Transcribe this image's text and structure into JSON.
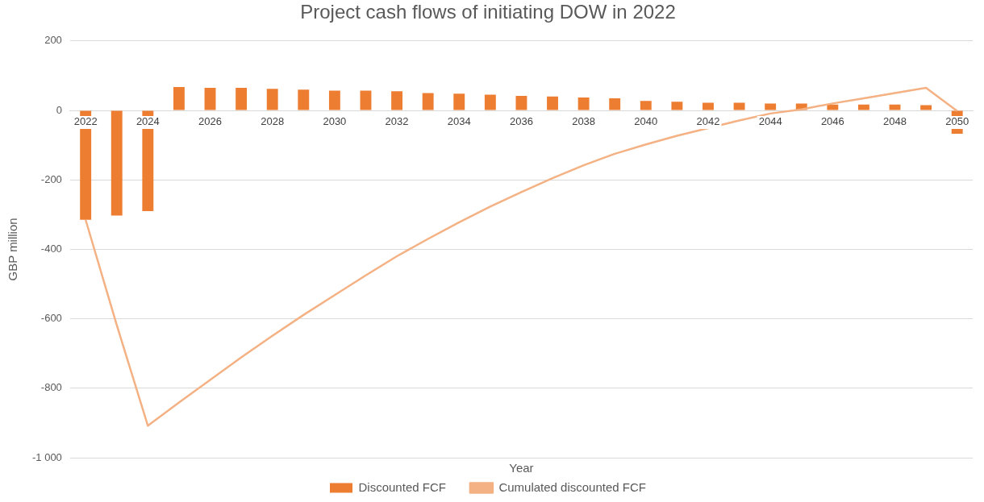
{
  "chart_data": {
    "type": "bar",
    "title": "Project cash flows of initiating DOW in 2022",
    "xlabel": "Year",
    "ylabel": "GBP million",
    "categories": [
      "2022",
      null,
      "2024",
      null,
      "2026",
      null,
      "2028",
      null,
      "2030",
      null,
      "2032",
      null,
      "2034",
      null,
      "2036",
      null,
      "2038",
      null,
      "2040",
      null,
      "2042",
      null,
      "2044",
      null,
      "2046",
      null,
      "2048",
      null,
      "2050"
    ],
    "series": [
      {
        "name": "Discounted FCF",
        "color": "#ed7d31",
        "values": [
          -315,
          -303,
          -290,
          67,
          65,
          65,
          62,
          60,
          57,
          57,
          55,
          50,
          48,
          45,
          42,
          40,
          37,
          35,
          27,
          25,
          22,
          22,
          20,
          20,
          17,
          17,
          17,
          15,
          -67
        ]
      },
      {
        "name": "Cumulated discounted FCF",
        "type": "line",
        "color": "#f4b183",
        "values": [
          -315,
          -618,
          -908,
          -841,
          -776,
          -711,
          -649,
          -589,
          -532,
          -475,
          -420,
          -370,
          -322,
          -277,
          -235,
          -195,
          -158,
          -125,
          -98,
          -73,
          -51,
          -29,
          -9,
          3,
          20,
          35,
          50,
          65,
          -2
        ]
      }
    ],
    "ylim": [
      -1000,
      200
    ],
    "yticks": [
      {
        "value": -1000,
        "label": "-1 000"
      },
      -800,
      -600,
      -400,
      -200,
      0,
      200
    ],
    "grid": "y",
    "legend": "bottom",
    "marker": "none"
  }
}
